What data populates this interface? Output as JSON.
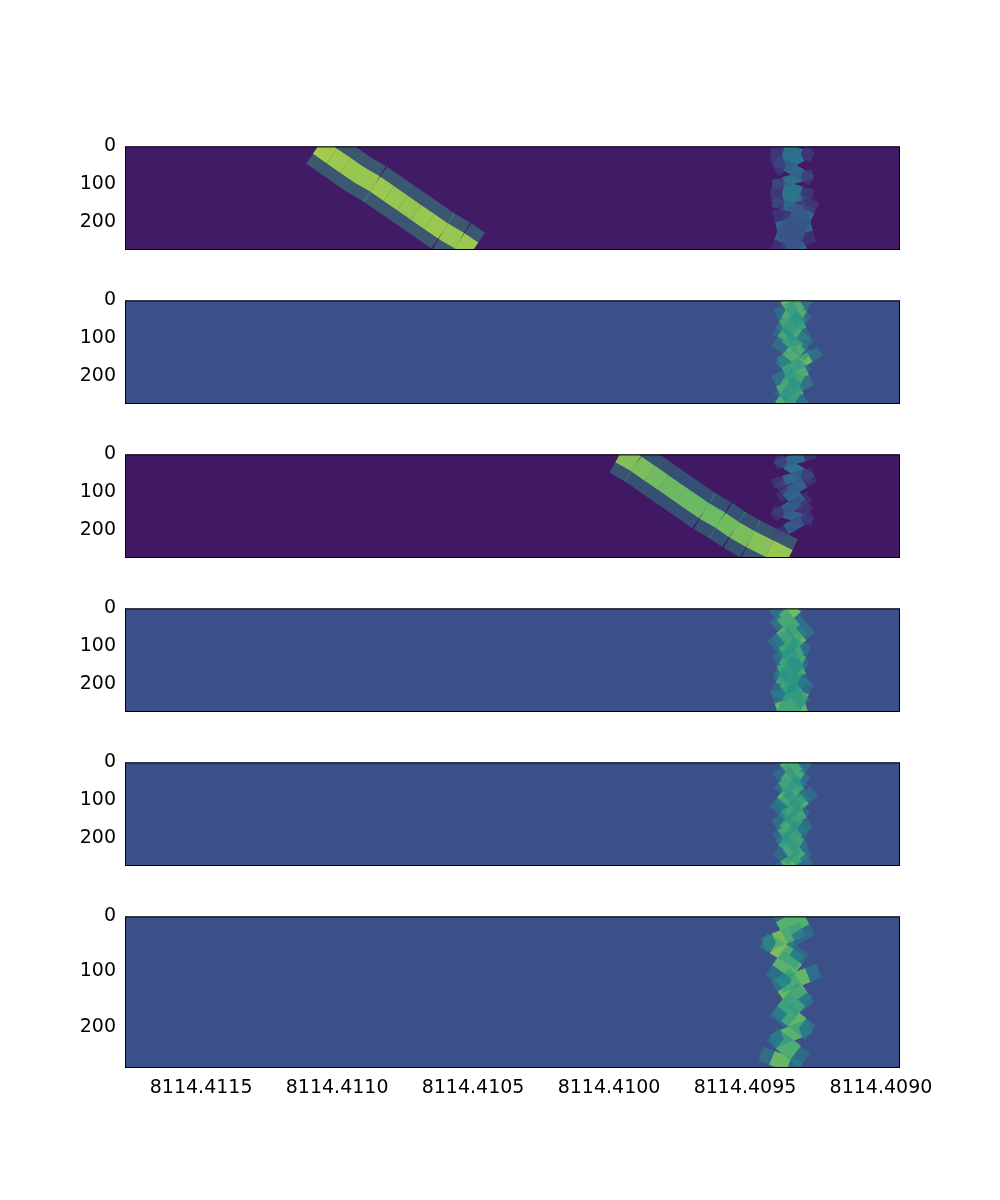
{
  "chart_data": [
    {
      "type": "heatmap",
      "tick_labels": "y",
      "xlim": [
        8114.41178,
        8114.40893
      ],
      "xticks": [
        8114.4115,
        {
          "value": 8114.411,
          "label": "8114.4110"
        },
        8114.4105,
        {
          "value": 8114.41,
          "label": "8114.4100"
        },
        8114.4095,
        {
          "value": 8114.409,
          "label": "8114.4090"
        }
      ],
      "ylim": [
        0,
        275
      ],
      "yticks": [
        0,
        100,
        200
      ],
      "zlim": [
        0,
        1
      ],
      "noise_level": 0.08,
      "tracks": [
        {
          "x": [
            8114.41107,
            8114.41102,
            8114.41097,
            8114.41092,
            8114.41086,
            8114.41081,
            8114.41076,
            8114.41071,
            8114.41066,
            8114.41061,
            8114.41055,
            8114.4105
          ],
          "y": [
            0,
            25,
            50,
            75,
            100,
            125,
            150,
            175,
            200,
            225,
            250,
            275
          ],
          "intensity": [
            1,
            0.98,
            0.97,
            0.97,
            0.98,
            0.97,
            0.96,
            0.97,
            0.98,
            0.97,
            0.98,
            1
          ]
        },
        {
          "x": [
            8114.40932,
            8114.40933,
            8114.40931,
            8114.40933,
            8114.40932,
            8114.40933,
            8114.40932,
            8114.40933,
            8114.40926,
            8114.40938,
            8114.40929,
            8114.40934
          ],
          "y": [
            0,
            25,
            50,
            75,
            100,
            125,
            150,
            175,
            200,
            225,
            250,
            275
          ],
          "intensity": [
            0.45,
            0.45,
            0.42,
            0.45,
            0.47,
            0.47,
            0.45,
            0.44,
            0.4,
            0.38,
            0.4,
            0.35
          ]
        }
      ]
    },
    {
      "type": "heatmap",
      "tick_labels": "y",
      "xlim": [
        8114.41178,
        8114.40893
      ],
      "xticks": [
        8114.4115,
        {
          "value": 8114.411,
          "label": "8114.4110"
        },
        8114.4105,
        {
          "value": 8114.41,
          "label": "8114.4100"
        },
        8114.4095,
        {
          "value": 8114.409,
          "label": "8114.4090"
        }
      ],
      "ylim": [
        0,
        275
      ],
      "yticks": [
        0,
        100,
        200
      ],
      "zlim": [
        0,
        1
      ],
      "noise_level": 0.24,
      "tracks": [
        {
          "x": [
            8114.4093,
            8114.40935,
            8114.40929,
            8114.40936,
            8114.40931,
            8114.40934,
            8114.4093,
            8114.40928,
            8114.40935,
            8114.4093,
            8114.40937,
            8114.40932
          ],
          "y": [
            0,
            25,
            50,
            75,
            100,
            125,
            150,
            175,
            200,
            225,
            250,
            275
          ],
          "intensity": [
            0.85,
            0.9,
            0.8,
            0.85,
            0.78,
            0.88,
            0.85,
            0.9,
            0.8,
            0.86,
            0.78,
            0.82
          ]
        }
      ]
    },
    {
      "type": "heatmap",
      "tick_labels": "y",
      "xlim": [
        8114.41178,
        8114.40893
      ],
      "xticks": [
        8114.4115,
        {
          "value": 8114.411,
          "label": "8114.4110"
        },
        8114.4105,
        {
          "value": 8114.41,
          "label": "8114.4100"
        },
        8114.4095,
        {
          "value": 8114.409,
          "label": "8114.4090"
        }
      ],
      "ylim": [
        0,
        275
      ],
      "yticks": [
        0,
        100,
        200
      ],
      "zlim": [
        0,
        1
      ],
      "noise_level": 0.07,
      "tracks": [
        {
          "x": [
            8114.40932,
            8114.40931,
            8114.40933,
            8114.40932,
            8114.4093,
            8114.40934,
            8114.40932,
            8114.40933,
            8114.40931
          ],
          "y": [
            0,
            25,
            50,
            75,
            100,
            125,
            150,
            175,
            200
          ],
          "intensity": [
            0.42,
            0.45,
            0.4,
            0.38,
            0.42,
            0.36,
            0.38,
            0.35,
            0.3
          ]
        },
        {
          "x": [
            8114.40996,
            8114.4099,
            8114.40985,
            8114.4098,
            8114.40975,
            8114.4097,
            8114.40965,
            8114.40959,
            8114.40954,
            8114.40948,
            8114.40941,
            8114.40934
          ],
          "y": [
            0,
            25,
            50,
            75,
            100,
            125,
            150,
            175,
            200,
            225,
            250,
            275
          ],
          "intensity": [
            0.92,
            0.9,
            0.88,
            0.86,
            0.86,
            0.86,
            0.87,
            0.88,
            0.9,
            0.93,
            0.97,
            1
          ]
        }
      ]
    },
    {
      "type": "heatmap",
      "tick_labels": "y",
      "xlim": [
        8114.41178,
        8114.40893
      ],
      "xticks": [
        8114.4115,
        {
          "value": 8114.411,
          "label": "8114.4110"
        },
        8114.4105,
        {
          "value": 8114.41,
          "label": "8114.4100"
        },
        8114.4095,
        {
          "value": 8114.409,
          "label": "8114.4090"
        }
      ],
      "ylim": [
        0,
        275
      ],
      "yticks": [
        0,
        100,
        200
      ],
      "zlim": [
        0,
        1
      ],
      "noise_level": 0.24,
      "tracks": [
        {
          "x": [
            8114.40935,
            8114.40932,
            8114.40936,
            8114.40933,
            8114.4093,
            8114.40936,
            8114.40929,
            8114.40937,
            8114.40931,
            8114.40935,
            8114.40928,
            8114.40938
          ],
          "y": [
            0,
            25,
            50,
            75,
            100,
            125,
            150,
            175,
            200,
            225,
            250,
            275
          ],
          "intensity": [
            0.88,
            0.85,
            0.82,
            0.86,
            0.8,
            0.84,
            0.82,
            0.78,
            0.85,
            0.8,
            0.83,
            0.78
          ]
        }
      ]
    },
    {
      "type": "heatmap",
      "tick_labels": "y",
      "xlim": [
        8114.41178,
        8114.40893
      ],
      "xticks": [
        8114.4115,
        {
          "value": 8114.411,
          "label": "8114.4110"
        },
        8114.4105,
        {
          "value": 8114.41,
          "label": "8114.4100"
        },
        8114.4095,
        {
          "value": 8114.409,
          "label": "8114.4090"
        }
      ],
      "ylim": [
        0,
        275
      ],
      "yticks": [
        0,
        100,
        200
      ],
      "zlim": [
        0,
        1
      ],
      "noise_level": 0.24,
      "tracks": [
        {
          "x": [
            8114.40931,
            8114.40935,
            8114.4093,
            8114.40936,
            8114.40932,
            8114.40929,
            8114.40935,
            8114.40931,
            8114.40936,
            8114.4093,
            8114.40934,
            8114.40932
          ],
          "y": [
            0,
            25,
            50,
            75,
            100,
            125,
            150,
            175,
            200,
            225,
            250,
            275
          ],
          "intensity": [
            0.82,
            0.86,
            0.8,
            0.84,
            0.78,
            0.82,
            0.8,
            0.86,
            0.8,
            0.84,
            0.82,
            0.8
          ]
        }
      ]
    },
    {
      "type": "heatmap",
      "xlim": [
        8114.41178,
        8114.40893
      ],
      "xticks": [
        8114.4115,
        {
          "value": 8114.411,
          "label": "8114.4110"
        },
        8114.4105,
        {
          "value": 8114.41,
          "label": "8114.4100"
        },
        8114.4095,
        {
          "value": 8114.409,
          "label": "8114.4090"
        }
      ],
      "ylim": [
        0,
        275
      ],
      "yticks": [
        0,
        100,
        200
      ],
      "zlim": [
        0,
        1
      ],
      "noise_level": 0.24,
      "tracks": [
        {
          "x": [
            8114.40928,
            8114.40937,
            8114.40935,
            8114.40938,
            8114.40931,
            8114.40929,
            8114.40936,
            8114.4093,
            8114.40934,
            8114.40932,
            8114.40936,
            8114.40938
          ],
          "y": [
            0,
            25,
            50,
            75,
            100,
            125,
            150,
            175,
            200,
            225,
            250,
            275
          ],
          "intensity": [
            0.8,
            0.88,
            0.9,
            0.82,
            0.84,
            0.86,
            0.8,
            0.84,
            0.82,
            0.78,
            0.85,
            0.82
          ]
        }
      ]
    }
  ]
}
